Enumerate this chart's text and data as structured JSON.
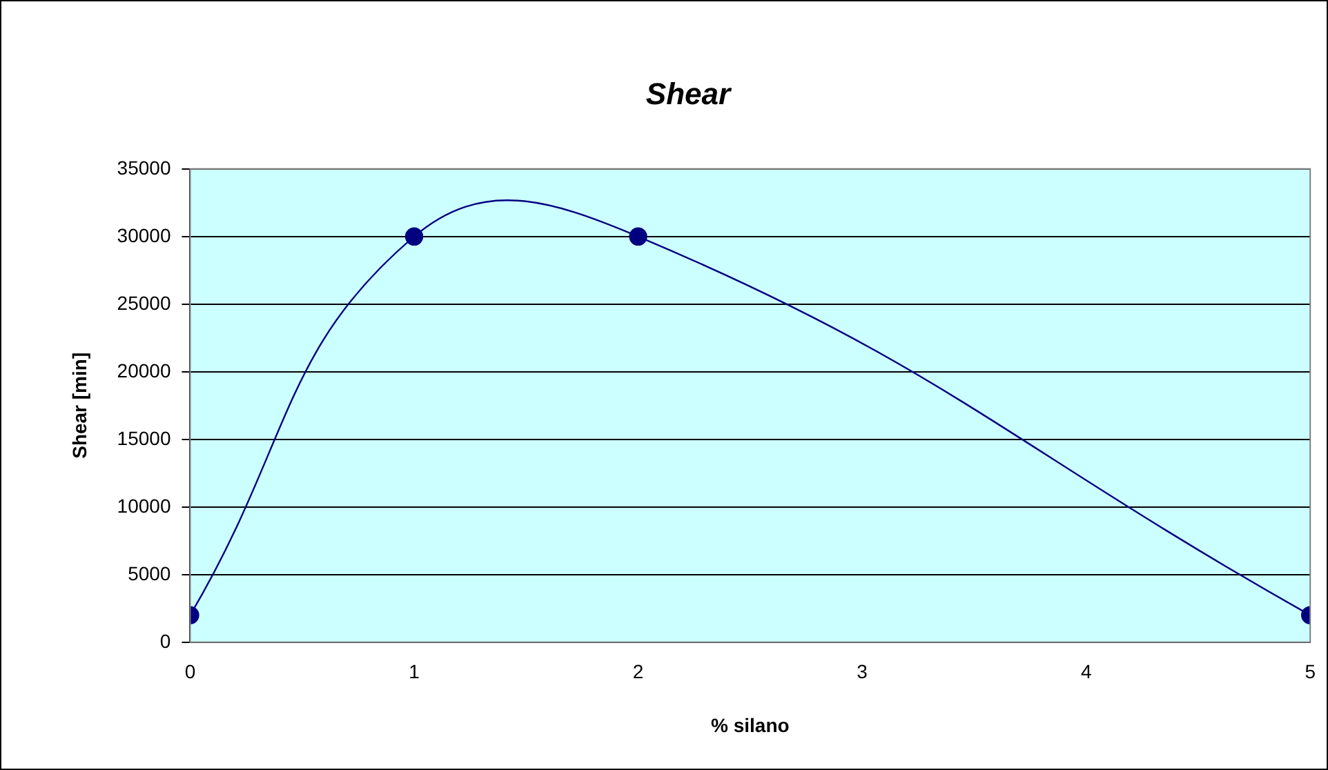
{
  "chart_data": {
    "type": "line",
    "title": "Shear",
    "xlabel": "% silano",
    "ylabel": "Shear [min]",
    "x": [
      0,
      1,
      2,
      5
    ],
    "series": [
      {
        "color": "#000080",
        "values": [
          2000,
          30000,
          30000,
          2000
        ]
      }
    ],
    "xlim": [
      0,
      5
    ],
    "xticks": [
      0,
      1,
      2,
      3,
      4,
      5
    ],
    "ylim": [
      0,
      35000
    ],
    "yticks": [
      0,
      5000,
      10000,
      15000,
      20000,
      25000,
      30000,
      35000
    ],
    "grid": "y",
    "legend": false,
    "marker": "circle",
    "line_style": "solid"
  }
}
